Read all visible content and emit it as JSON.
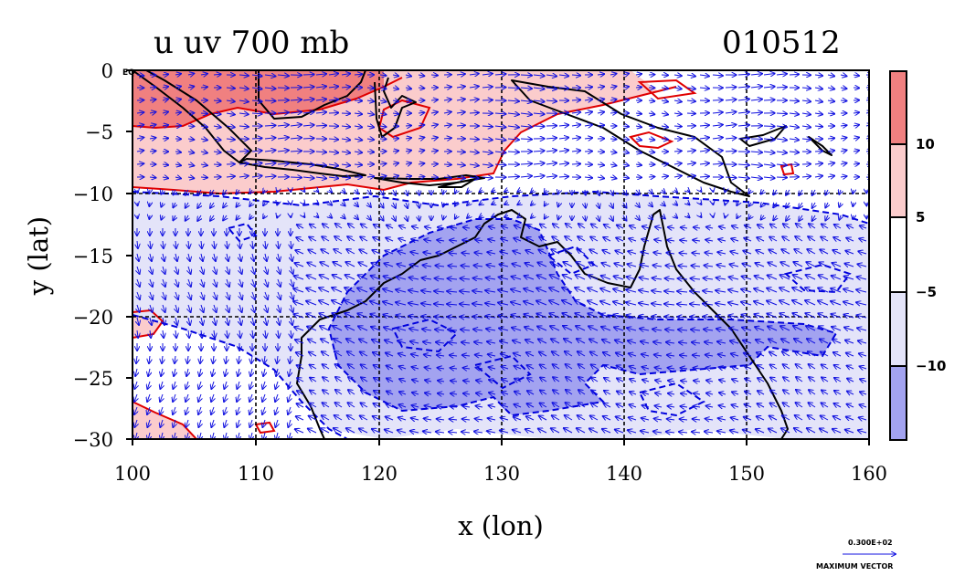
{
  "title": {
    "left": "u uv 700 mb",
    "right": "010512"
  },
  "axes": {
    "xlabel": "x (lon)",
    "ylabel": "y (lat)",
    "xlim": [
      100,
      160
    ],
    "ylim": [
      -30,
      0
    ],
    "x_ticks": [
      "100",
      "110",
      "120",
      "130",
      "140",
      "150",
      "160"
    ],
    "y_ticks": [
      "0",
      "−5",
      "−10",
      "−15",
      "−20",
      "−25",
      "−30"
    ],
    "eq_label": "EQ",
    "grid": true,
    "grid_lon": [
      110,
      120,
      130,
      140,
      150
    ],
    "grid_lat": [
      -10,
      -20
    ]
  },
  "colorbar": {
    "labels": [
      "10",
      "5",
      "−5",
      "−10"
    ],
    "colors": [
      "#f08080",
      "#fbcccc",
      "#ffffff",
      "#e4e4f9",
      "#a3a3f0"
    ]
  },
  "colors": {
    "positive_contour": "#e00000",
    "negative_contour": "#0000dd",
    "vector": "#1010e0",
    "coast": "#000000"
  },
  "vector_key": {
    "value": "0.300E+02",
    "label": "MAXIMUM VECTOR"
  }
}
